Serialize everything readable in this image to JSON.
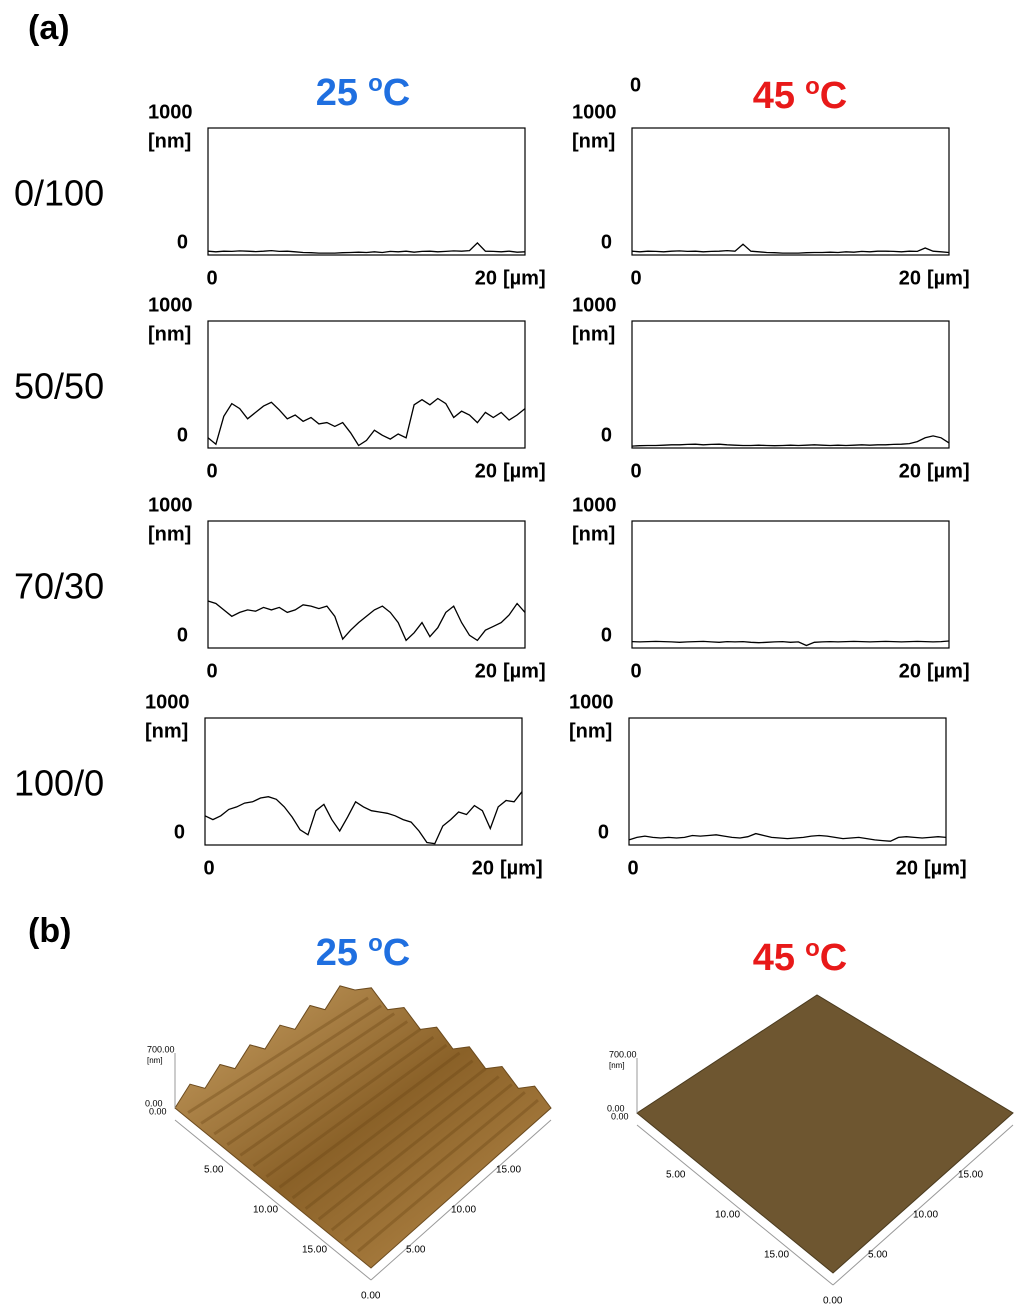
{
  "panel_labels": [
    "(a)",
    "(b)"
  ],
  "column_titles": [
    {
      "number": "25",
      "sup": "o",
      "unit": "C",
      "color": "#1f6fe0"
    },
    {
      "number": "45",
      "sup": "o",
      "unit": "C",
      "color": "#e81919"
    }
  ],
  "row_labels": [
    "0/100",
    "50/50",
    "70/30",
    "100/0"
  ],
  "chart_data": [
    {
      "type": "line",
      "annotation": null,
      "x_label": "[µm]",
      "y_label": "[nm]",
      "xlim": [
        0,
        20
      ],
      "ylim": [
        0,
        1000
      ],
      "xticks": [
        0,
        20
      ],
      "yticks": [
        0,
        1000
      ],
      "x": [
        0,
        0.5,
        1,
        1.5,
        2,
        2.5,
        3,
        3.5,
        4,
        4.5,
        5,
        5.5,
        6,
        6.5,
        7,
        7.5,
        8,
        8.5,
        9,
        9.5,
        10,
        10.5,
        11,
        11.5,
        12,
        12.5,
        13,
        13.5,
        14,
        14.5,
        15,
        15.5,
        16,
        16.5,
        17,
        17.5,
        18,
        18.5,
        19,
        19.5,
        20
      ],
      "series": [
        {
          "color": "#000000",
          "values": [
            30,
            25,
            30,
            28,
            32,
            30,
            27,
            30,
            35,
            28,
            30,
            25,
            20,
            18,
            15,
            15,
            15,
            18,
            20,
            22,
            20,
            25,
            20,
            28,
            25,
            30,
            22,
            28,
            30,
            25,
            28,
            32,
            30,
            35,
            95,
            30,
            28,
            25,
            30,
            22,
            25
          ]
        }
      ]
    },
    {
      "type": "line",
      "annotation": "0",
      "x_label": "[µm]",
      "y_label": "[nm]",
      "xlim": [
        0,
        20
      ],
      "ylim": [
        0,
        1000
      ],
      "xticks": [
        0,
        20
      ],
      "yticks": [
        0,
        1000
      ],
      "x": [
        0,
        0.5,
        1,
        1.5,
        2,
        2.5,
        3,
        3.5,
        4,
        4.5,
        5,
        5.5,
        6,
        6.5,
        7,
        7.5,
        8,
        8.5,
        9,
        9.5,
        10,
        10.5,
        11,
        11.5,
        12,
        12.5,
        13,
        13.5,
        14,
        14.5,
        15,
        15.5,
        16,
        16.5,
        17,
        17.5,
        18,
        18.5,
        19,
        19.5,
        20
      ],
      "series": [
        {
          "color": "#000000",
          "values": [
            30,
            25,
            30,
            28,
            25,
            30,
            32,
            28,
            30,
            25,
            28,
            30,
            35,
            30,
            85,
            30,
            25,
            20,
            18,
            15,
            15,
            15,
            18,
            20,
            20,
            22,
            20,
            25,
            22,
            28,
            25,
            30,
            30,
            28,
            25,
            30,
            28,
            55,
            30,
            25,
            20
          ]
        }
      ]
    },
    {
      "type": "line",
      "annotation": null,
      "x_label": "[µm]",
      "y_label": "[nm]",
      "xlim": [
        0,
        20
      ],
      "ylim": [
        0,
        1000
      ],
      "xticks": [
        0,
        20
      ],
      "yticks": [
        0,
        1000
      ],
      "x": [
        0,
        0.5,
        1,
        1.5,
        2,
        2.5,
        3,
        3.5,
        4,
        4.5,
        5,
        5.5,
        6,
        6.5,
        7,
        7.5,
        8,
        8.5,
        9,
        9.5,
        10,
        10.5,
        11,
        11.5,
        12,
        12.5,
        13,
        13.5,
        14,
        14.5,
        15,
        15.5,
        16,
        16.5,
        17,
        17.5,
        18,
        18.5,
        19,
        19.5,
        20
      ],
      "series": [
        {
          "color": "#000000",
          "values": [
            80,
            30,
            250,
            350,
            310,
            230,
            280,
            330,
            360,
            300,
            230,
            260,
            210,
            240,
            190,
            200,
            170,
            200,
            120,
            20,
            60,
            140,
            100,
            70,
            110,
            80,
            340,
            380,
            340,
            390,
            350,
            240,
            290,
            260,
            200,
            280,
            240,
            280,
            220,
            260,
            310
          ]
        }
      ]
    },
    {
      "type": "line",
      "annotation": null,
      "x_label": "[µm]",
      "y_label": "[nm]",
      "xlim": [
        0,
        20
      ],
      "ylim": [
        0,
        1000
      ],
      "xticks": [
        0,
        20
      ],
      "yticks": [
        0,
        1000
      ],
      "x": [
        0,
        0.5,
        1,
        1.5,
        2,
        2.5,
        3,
        3.5,
        4,
        4.5,
        5,
        5.5,
        6,
        6.5,
        7,
        7.5,
        8,
        8.5,
        9,
        9.5,
        10,
        10.5,
        11,
        11.5,
        12,
        12.5,
        13,
        13.5,
        14,
        14.5,
        15,
        15.5,
        16,
        16.5,
        17,
        17.5,
        18,
        18.5,
        19,
        19.5,
        20
      ],
      "series": [
        {
          "color": "#000000",
          "values": [
            15,
            18,
            20,
            20,
            22,
            25,
            25,
            28,
            30,
            25,
            28,
            30,
            25,
            22,
            20,
            20,
            22,
            20,
            18,
            20,
            22,
            20,
            22,
            25,
            22,
            20,
            22,
            20,
            22,
            25,
            22,
            25,
            25,
            28,
            30,
            35,
            50,
            80,
            95,
            80,
            40
          ]
        }
      ]
    },
    {
      "type": "line",
      "annotation": null,
      "x_label": "[µm]",
      "y_label": "[nm]",
      "xlim": [
        0,
        20
      ],
      "ylim": [
        0,
        1000
      ],
      "xticks": [
        0,
        20
      ],
      "yticks": [
        0,
        1000
      ],
      "x": [
        0,
        0.5,
        1,
        1.5,
        2,
        2.5,
        3,
        3.5,
        4,
        4.5,
        5,
        5.5,
        6,
        6.5,
        7,
        7.5,
        8,
        8.5,
        9,
        9.5,
        10,
        10.5,
        11,
        11.5,
        12,
        12.5,
        13,
        13.5,
        14,
        14.5,
        15,
        15.5,
        16,
        16.5,
        17,
        17.5,
        18,
        18.5,
        19,
        19.5,
        20
      ],
      "series": [
        {
          "color": "#000000",
          "values": [
            370,
            350,
            300,
            250,
            280,
            300,
            290,
            320,
            300,
            320,
            280,
            300,
            340,
            330,
            310,
            330,
            250,
            70,
            140,
            200,
            250,
            300,
            330,
            280,
            200,
            60,
            120,
            200,
            90,
            160,
            280,
            330,
            200,
            100,
            60,
            140,
            170,
            200,
            260,
            350,
            280
          ]
        }
      ]
    },
    {
      "type": "line",
      "annotation": null,
      "x_label": "[µm]",
      "y_label": "[nm]",
      "xlim": [
        0,
        20
      ],
      "ylim": [
        0,
        1000
      ],
      "xticks": [
        0,
        20
      ],
      "yticks": [
        0,
        1000
      ],
      "x": [
        0,
        0.5,
        1,
        1.5,
        2,
        2.5,
        3,
        3.5,
        4,
        4.5,
        5,
        5.5,
        6,
        6.5,
        7,
        7.5,
        8,
        8.5,
        9,
        9.5,
        10,
        10.5,
        11,
        11.5,
        12,
        12.5,
        13,
        13.5,
        14,
        14.5,
        15,
        15.5,
        16,
        16.5,
        17,
        17.5,
        18,
        18.5,
        19,
        19.5,
        20
      ],
      "series": [
        {
          "color": "#000000",
          "values": [
            50,
            48,
            50,
            52,
            50,
            48,
            45,
            48,
            50,
            52,
            48,
            45,
            50,
            48,
            50,
            45,
            42,
            45,
            48,
            50,
            45,
            48,
            20,
            45,
            48,
            50,
            48,
            50,
            52,
            50,
            48,
            50,
            52,
            50,
            48,
            50,
            52,
            50,
            48,
            50,
            55
          ]
        }
      ]
    },
    {
      "type": "line",
      "annotation": null,
      "x_label": "[µm]",
      "y_label": "[nm]",
      "xlim": [
        0,
        20
      ],
      "ylim": [
        0,
        1000
      ],
      "xticks": [
        0,
        20
      ],
      "yticks": [
        0,
        1000
      ],
      "x": [
        0,
        0.5,
        1,
        1.5,
        2,
        2.5,
        3,
        3.5,
        4,
        4.5,
        5,
        5.5,
        6,
        6.5,
        7,
        7.5,
        8,
        8.5,
        9,
        9.5,
        10,
        10.5,
        11,
        11.5,
        12,
        12.5,
        13,
        13.5,
        14,
        14.5,
        15,
        15.5,
        16,
        16.5,
        17,
        17.5,
        18,
        18.5,
        19,
        19.5,
        20
      ],
      "series": [
        {
          "color": "#000000",
          "values": [
            230,
            200,
            230,
            280,
            300,
            330,
            340,
            370,
            380,
            360,
            300,
            220,
            120,
            80,
            270,
            320,
            200,
            110,
            220,
            340,
            300,
            270,
            260,
            250,
            230,
            200,
            180,
            110,
            20,
            10,
            150,
            200,
            260,
            240,
            310,
            270,
            130,
            300,
            350,
            340,
            420
          ]
        }
      ]
    },
    {
      "type": "line",
      "annotation": null,
      "x_label": "[µm]",
      "y_label": "[nm]",
      "xlim": [
        0,
        20
      ],
      "ylim": [
        0,
        1000
      ],
      "xticks": [
        0,
        20
      ],
      "yticks": [
        0,
        1000
      ],
      "x": [
        0,
        0.5,
        1,
        1.5,
        2,
        2.5,
        3,
        3.5,
        4,
        4.5,
        5,
        5.5,
        6,
        6.5,
        7,
        7.5,
        8,
        8.5,
        9,
        9.5,
        10,
        10.5,
        11,
        11.5,
        12,
        12.5,
        13,
        13.5,
        14,
        14.5,
        15,
        15.5,
        16,
        16.5,
        17,
        17.5,
        18,
        18.5,
        19,
        19.5,
        20
      ],
      "series": [
        {
          "color": "#000000",
          "values": [
            40,
            60,
            70,
            60,
            55,
            60,
            55,
            60,
            75,
            70,
            75,
            80,
            70,
            60,
            55,
            65,
            90,
            75,
            60,
            55,
            50,
            55,
            60,
            70,
            75,
            70,
            60,
            50,
            55,
            60,
            50,
            40,
            35,
            30,
            60,
            65,
            60,
            55,
            60,
            65,
            60
          ]
        }
      ]
    }
  ],
  "surfaces": [
    {
      "z_labels": [
        "700.00",
        "[nm]",
        "0.00",
        "0.00"
      ],
      "left_axis": [
        "5.00",
        "10.00",
        "15.00"
      ],
      "right_axis": [
        "0.00",
        "5.00",
        "10.00",
        "15.00"
      ],
      "color": "#a47a3a"
    },
    {
      "z_labels": [
        "700.00",
        "[nm]",
        "0.00",
        "0.00"
      ],
      "left_axis": [
        "5.00",
        "10.00",
        "15.00"
      ],
      "right_axis": [
        "0.00",
        "5.00",
        "10.00",
        "15.00"
      ],
      "color": "#6e5630"
    }
  ]
}
